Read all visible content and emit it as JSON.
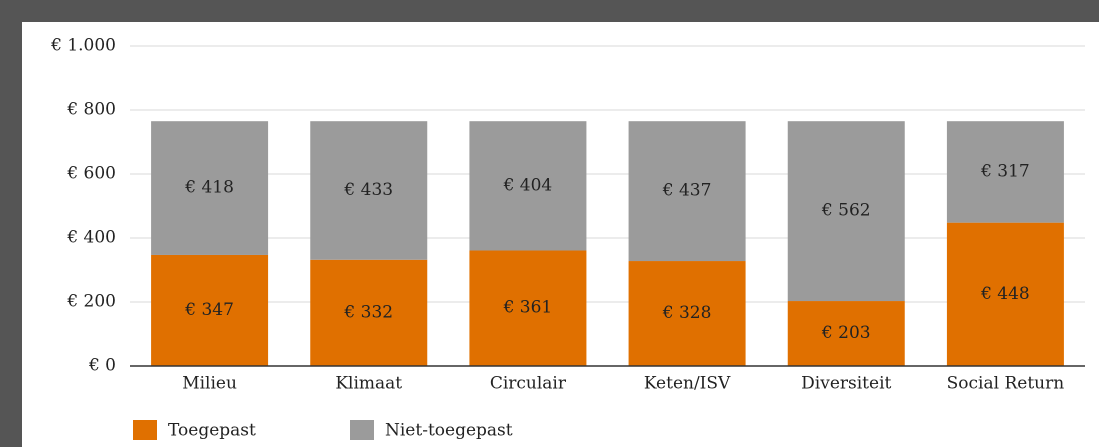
{
  "chart_data": {
    "type": "stacked_bar",
    "categories": [
      "Milieu",
      "Klimaat",
      "Circulair",
      "Keten/ISV",
      "Diversiteit",
      "Social Return"
    ],
    "series": [
      {
        "name": "Toegepast",
        "color": "#e07000",
        "values": [
          347,
          332,
          361,
          328,
          203,
          448
        ],
        "value_labels": [
          "€ 347",
          "€ 332",
          "€ 361",
          "€ 328",
          "€ 203",
          "€ 448"
        ]
      },
      {
        "name": "Niet-toegepast",
        "color": "#9b9b9b",
        "values": [
          418,
          433,
          404,
          437,
          562,
          317
        ],
        "value_labels": [
          "€ 418",
          "€ 433",
          "€ 404",
          "€ 437",
          "€ 562",
          "€ 317"
        ]
      }
    ],
    "ylim": [
      0,
      1000
    ],
    "yticks": [
      {
        "value": 0,
        "label": "€ 0"
      },
      {
        "value": 200,
        "label": "€ 200"
      },
      {
        "value": 400,
        "label": "€ 400"
      },
      {
        "value": 600,
        "label": "€ 600"
      },
      {
        "value": 800,
        "label": "€ 800"
      },
      {
        "value": 1000,
        "label": "€ 1.000"
      }
    ],
    "grid": true,
    "legend": "bottom-left"
  }
}
